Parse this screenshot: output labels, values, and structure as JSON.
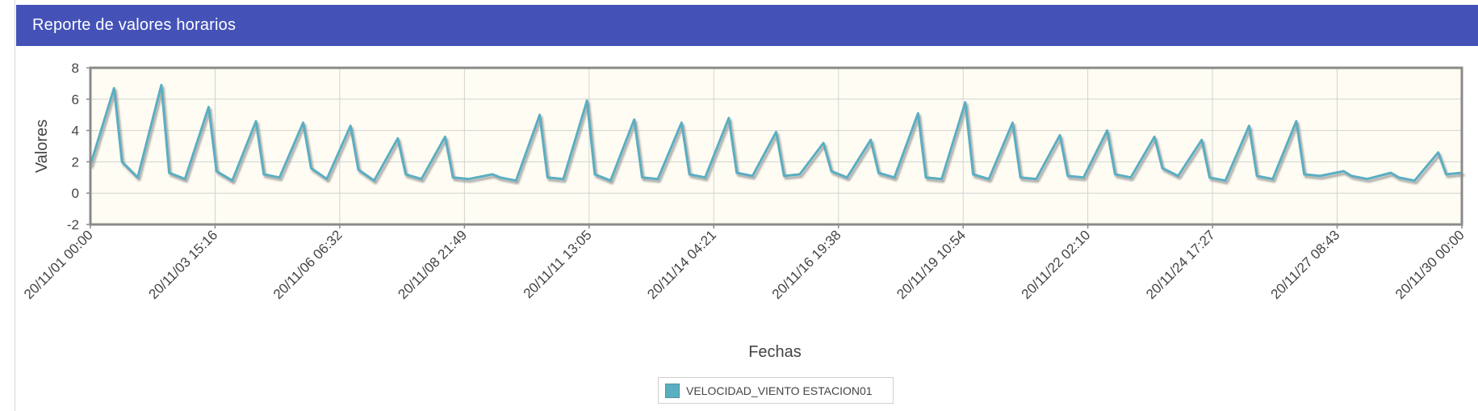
{
  "panel": {
    "title": "Reporte de valores horarios"
  },
  "colors": {
    "header": "#4452b8",
    "plot_background": "#fffdf3",
    "series": "#5aaec2",
    "shadow": "#9d9d9d",
    "grid": "#d2d2d2",
    "frame": "#8a8a8a"
  },
  "chart_data": {
    "type": "line",
    "xlabel": "Fechas",
    "ylabel": "Valores",
    "xlim": [
      "20/11/01 00:00",
      "20/11/30 00:00"
    ],
    "ylim": [
      -2,
      8
    ],
    "yticks": [
      -2,
      0,
      2,
      4,
      6,
      8
    ],
    "xticks": [
      "20/11/01 00:00",
      "20/11/03 15:16",
      "20/11/06 06:32",
      "20/11/08 21:49",
      "20/11/11 13:05",
      "20/11/14 04:21",
      "20/11/16 19:38",
      "20/11/19 10:54",
      "20/11/22 02:10",
      "20/11/24 17:27",
      "20/11/27 08:43",
      "20/11/30 00:00"
    ],
    "grid": true,
    "legend_position": "bottom-center",
    "series": [
      {
        "name": "VELOCIDAD_VIENTO ESTACION01",
        "x": [
          "20/11/01 00:00",
          "20/11/01 12:00",
          "20/11/01 16:00",
          "20/11/02 00:00",
          "20/11/02 12:00",
          "20/11/02 16:00",
          "20/11/03 00:00",
          "20/11/03 12:00",
          "20/11/03 16:00",
          "20/11/04 00:00",
          "20/11/04 12:00",
          "20/11/04 16:00",
          "20/11/05 00:00",
          "20/11/05 12:00",
          "20/11/05 16:00",
          "20/11/06 00:00",
          "20/11/06 12:00",
          "20/11/06 16:00",
          "20/11/07 00:00",
          "20/11/07 12:00",
          "20/11/07 16:00",
          "20/11/08 00:00",
          "20/11/08 12:00",
          "20/11/08 16:00",
          "20/11/09 00:00",
          "20/11/09 12:00",
          "20/11/09 16:00",
          "20/11/10 00:00",
          "20/11/10 12:00",
          "20/11/10 16:00",
          "20/11/11 00:00",
          "20/11/11 12:00",
          "20/11/11 16:00",
          "20/11/12 00:00",
          "20/11/12 12:00",
          "20/11/12 16:00",
          "20/11/13 00:00",
          "20/11/13 12:00",
          "20/11/13 16:00",
          "20/11/14 00:00",
          "20/11/14 12:00",
          "20/11/14 16:00",
          "20/11/15 00:00",
          "20/11/15 12:00",
          "20/11/15 16:00",
          "20/11/16 00:00",
          "20/11/16 12:00",
          "20/11/16 16:00",
          "20/11/17 00:00",
          "20/11/17 12:00",
          "20/11/17 16:00",
          "20/11/18 00:00",
          "20/11/18 12:00",
          "20/11/18 16:00",
          "20/11/19 00:00",
          "20/11/19 12:00",
          "20/11/19 16:00",
          "20/11/20 00:00",
          "20/11/20 12:00",
          "20/11/20 16:00",
          "20/11/21 00:00",
          "20/11/21 12:00",
          "20/11/21 16:00",
          "20/11/22 00:00",
          "20/11/22 12:00",
          "20/11/22 16:00",
          "20/11/23 00:00",
          "20/11/23 12:00",
          "20/11/23 16:00",
          "20/11/24 00:00",
          "20/11/24 12:00",
          "20/11/24 16:00",
          "20/11/25 00:00",
          "20/11/25 12:00",
          "20/11/25 16:00",
          "20/11/26 00:00",
          "20/11/26 12:00",
          "20/11/26 16:00",
          "20/11/27 00:00",
          "20/11/27 12:00",
          "20/11/27 16:00",
          "20/11/28 00:00",
          "20/11/28 12:00",
          "20/11/28 16:00",
          "20/11/29 00:00",
          "20/11/29 12:00",
          "20/11/29 16:00",
          "20/11/30 00:00"
        ],
        "values": [
          1.8,
          6.7,
          2.0,
          1.0,
          6.9,
          1.3,
          0.9,
          5.5,
          1.4,
          0.8,
          4.6,
          1.2,
          1.0,
          4.5,
          1.6,
          0.9,
          4.3,
          1.5,
          0.8,
          3.5,
          1.2,
          0.9,
          3.6,
          1.0,
          0.9,
          1.2,
          1.0,
          0.8,
          5.0,
          1.0,
          0.9,
          5.9,
          1.2,
          0.8,
          4.7,
          1.0,
          0.9,
          4.5,
          1.2,
          1.0,
          4.8,
          1.3,
          1.1,
          3.9,
          1.1,
          1.2,
          3.2,
          1.4,
          1.0,
          3.4,
          1.3,
          1.0,
          5.1,
          1.0,
          0.9,
          5.8,
          1.2,
          0.9,
          4.5,
          1.0,
          0.9,
          3.7,
          1.1,
          1.0,
          4.0,
          1.2,
          1.0,
          3.6,
          1.6,
          1.1,
          3.4,
          1.0,
          0.8,
          4.3,
          1.1,
          0.9,
          4.6,
          1.2,
          1.1,
          1.4,
          1.1,
          0.9,
          1.3,
          1.0,
          0.8,
          2.6,
          1.2,
          1.3
        ]
      }
    ]
  }
}
